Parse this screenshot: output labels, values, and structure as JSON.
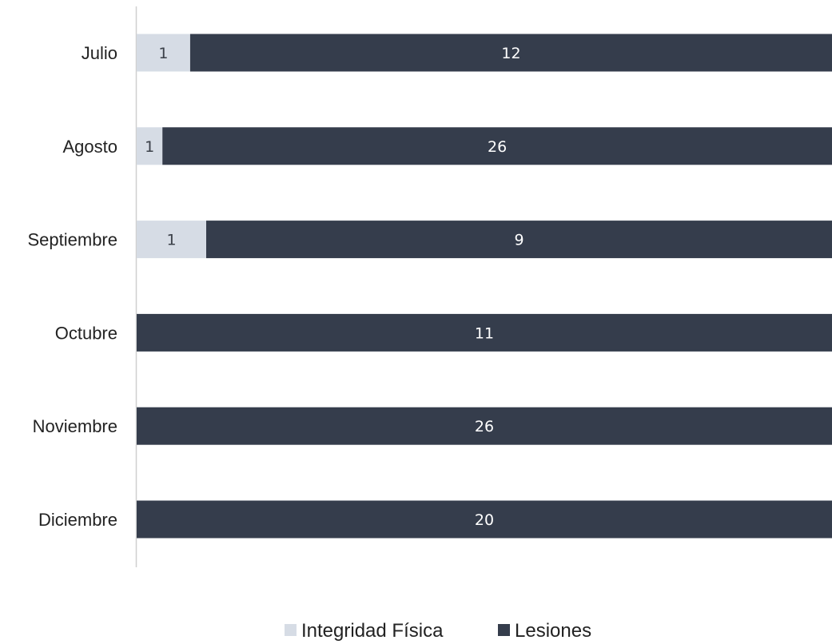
{
  "chart_data": {
    "type": "bar",
    "orientation": "horizontal",
    "stacked": "percent",
    "categories": [
      "Julio",
      "Agosto",
      "Septiembre",
      "Octubre",
      "Noviembre",
      "Diciembre"
    ],
    "series": [
      {
        "name": "Integridad Física",
        "values": [
          1,
          1,
          1,
          0,
          0,
          0
        ],
        "color": "#d6dce5",
        "label_color": "#3a3f48"
      },
      {
        "name": "Lesiones",
        "values": [
          12,
          26,
          9,
          11,
          26,
          20
        ],
        "color": "#353d4c",
        "label_color": "#ffffff"
      }
    ],
    "legend": "bottom",
    "grid": false,
    "title": "",
    "xlabel": "",
    "ylabel": ""
  }
}
